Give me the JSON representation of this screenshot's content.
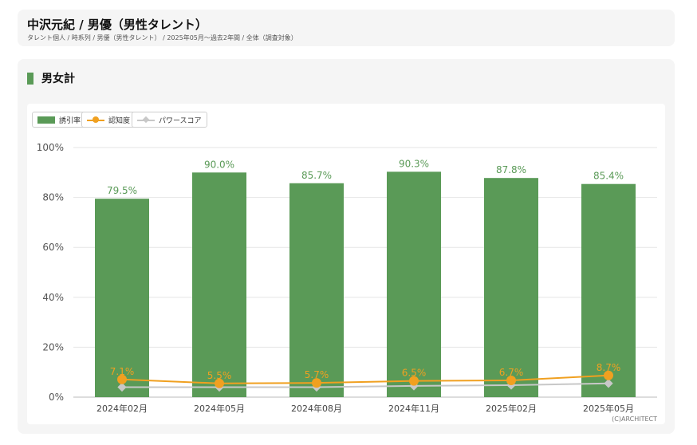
{
  "header": {
    "title": "中沢元紀 / 男優（男性タレント）",
    "breadcrumb": "タレント個人 / 時系列 / 男優（男性タレント） / 2025年05月〜過去2年間 / 全体（調査対象）"
  },
  "section": {
    "title": "男女計"
  },
  "legend": {
    "attraction": "誘引率",
    "awareness": "認知度",
    "power": "パワースコア"
  },
  "copyright": "(C)ARCHITECT",
  "colors": {
    "bar": "#5a9a57",
    "awareness": "#f0a020",
    "power": "#c8c8c8",
    "label_green": "#5a9a57",
    "label_orange": "#f0a020"
  },
  "chart_data": {
    "type": "bar",
    "categories": [
      "2024年02月",
      "2024年05月",
      "2024年08月",
      "2024年11月",
      "2025年02月",
      "2025年05月"
    ],
    "ylim": [
      0,
      100
    ],
    "yticks": [
      "0%",
      "20%",
      "40%",
      "60%",
      "80%",
      "100%"
    ],
    "series": [
      {
        "name": "誘引率",
        "type": "bar",
        "values": [
          79.5,
          90.0,
          85.7,
          90.3,
          87.8,
          85.4
        ],
        "labels": [
          "79.5%",
          "90.0%",
          "85.7%",
          "90.3%",
          "87.8%",
          "85.4%"
        ]
      },
      {
        "name": "認知度",
        "type": "line",
        "values": [
          7.1,
          5.5,
          5.7,
          6.5,
          6.7,
          8.7
        ],
        "labels": [
          "7.1%",
          "5.5%",
          "5.7%",
          "6.5%",
          "6.7%",
          "8.7%"
        ]
      },
      {
        "name": "パワースコア",
        "type": "line",
        "values": [
          4.0,
          4.0,
          4.0,
          4.5,
          4.8,
          5.5
        ]
      }
    ],
    "grid": true,
    "legend_position": "top-left"
  }
}
